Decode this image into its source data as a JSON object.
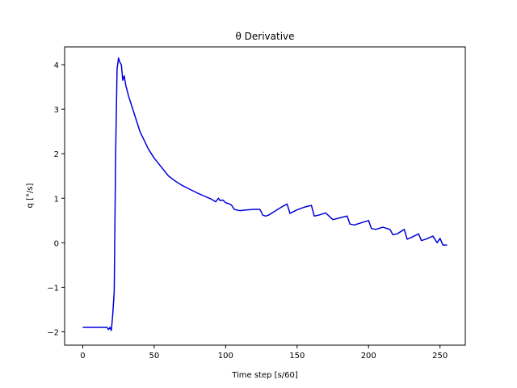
{
  "chart_data": {
    "type": "line",
    "title": "θ Derivative",
    "xlabel": "Time step [s/60]",
    "ylabel": "q [°/s]",
    "xlim": [
      -12.7,
      267.7
    ],
    "ylim": [
      -2.3,
      4.4
    ],
    "xticks": [
      0,
      50,
      100,
      150,
      200,
      250
    ],
    "yticks": [
      -2,
      -1,
      0,
      1,
      2,
      3,
      4
    ],
    "xtick_labels": [
      "0",
      "50",
      "100",
      "150",
      "200",
      "250"
    ],
    "ytick_labels": [
      "−2",
      "−1",
      "0",
      "1",
      "2",
      "3",
      "4"
    ],
    "grid": false,
    "legend": "none",
    "series": [
      {
        "color": "#0000dd",
        "x": [
          0,
          5,
          10,
          15,
          17,
          18,
          19,
          20,
          21,
          22,
          23,
          24,
          25,
          26,
          27,
          28,
          29,
          30,
          32,
          34,
          36,
          38,
          40,
          43,
          46,
          50,
          55,
          60,
          65,
          70,
          75,
          80,
          85,
          90,
          93,
          95,
          96,
          98,
          100,
          102,
          104,
          106,
          110,
          115,
          120,
          124,
          126,
          128,
          130,
          135,
          140,
          143,
          145,
          150,
          155,
          160,
          162,
          165,
          170,
          175,
          180,
          185,
          187,
          190,
          195,
          200,
          202,
          205,
          210,
          215,
          217,
          220,
          225,
          227,
          230,
          235,
          237,
          240,
          245,
          248,
          250,
          252,
          255
        ],
        "y": [
          -1.9,
          -1.9,
          -1.9,
          -1.9,
          -1.9,
          -1.95,
          -1.9,
          -1.97,
          -1.6,
          -1.1,
          2.0,
          3.9,
          4.15,
          4.05,
          4.0,
          3.65,
          3.75,
          3.55,
          3.3,
          3.1,
          2.9,
          2.7,
          2.5,
          2.3,
          2.1,
          1.9,
          1.7,
          1.5,
          1.38,
          1.28,
          1.2,
          1.12,
          1.05,
          0.98,
          0.92,
          1.0,
          0.95,
          0.96,
          0.9,
          0.88,
          0.85,
          0.75,
          0.72,
          0.74,
          0.75,
          0.75,
          0.62,
          0.6,
          0.62,
          0.72,
          0.82,
          0.87,
          0.66,
          0.74,
          0.8,
          0.84,
          0.6,
          0.62,
          0.67,
          0.52,
          0.56,
          0.6,
          0.42,
          0.4,
          0.45,
          0.5,
          0.32,
          0.3,
          0.35,
          0.3,
          0.18,
          0.2,
          0.3,
          0.08,
          0.12,
          0.2,
          0.05,
          0.08,
          0.15,
          0.0,
          0.1,
          -0.05,
          -0.05
        ]
      }
    ]
  }
}
